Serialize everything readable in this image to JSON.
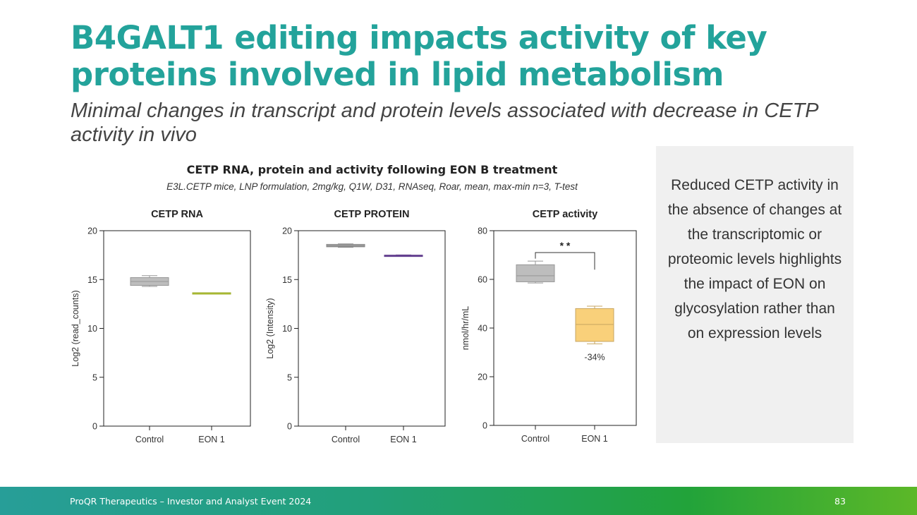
{
  "slide": {
    "title": "B4GALT1 editing impacts activity of key proteins involved in lipid metabolism",
    "subtitle": "Minimal changes in transcript and protein levels associated with decrease in CETP activity in vivo",
    "figure_title": "CETP RNA, protein and activity following EON B treatment",
    "figure_subtitle": "E3L.CETP mice, LNP formulation, 2mg/kg, Q1W, D31, RNAseq, Roar, mean, max-min n=3, T-test",
    "panel_text": "Reduced CETP activity in the absence of changes at the transcriptomic or proteomic levels highlights the impact of EON on glycosylation rather than on expression levels",
    "footer_text": "ProQR Therapeutics – Investor and Analyst Event 2024",
    "page_number": "83"
  },
  "colors": {
    "title": "#23a39b",
    "control": "#bdbdbd",
    "eon_rna": "#c8dc3c",
    "eon_protein": "#7b4fb0",
    "eon_activity": "#f9d07a"
  },
  "chart_data": [
    {
      "type": "box",
      "title": "CETP RNA",
      "ylabel": "Log2 (read_counts)",
      "ylim": [
        0,
        20
      ],
      "yticks": [
        "0",
        "5",
        "10",
        "15",
        "20"
      ],
      "categories": [
        "Control",
        "EON 1"
      ],
      "series": [
        {
          "name": "Control",
          "min": 14.3,
          "q1": 14.4,
          "median": 14.8,
          "q3": 15.2,
          "max": 15.4,
          "color": "#bdbdbd"
        },
        {
          "name": "EON 1",
          "min": 13.6,
          "q1": 13.6,
          "median": 13.6,
          "q3": 13.65,
          "max": 13.65,
          "color": "#c8dc3c"
        }
      ]
    },
    {
      "type": "box",
      "title": "CETP PROTEIN",
      "ylabel": "Log2 (Intensity)",
      "ylim": [
        0,
        20
      ],
      "yticks": [
        "0",
        "5",
        "10",
        "15",
        "20"
      ],
      "categories": [
        "Control",
        "EON 1"
      ],
      "series": [
        {
          "name": "Control",
          "min": 18.3,
          "q1": 18.35,
          "median": 18.45,
          "q3": 18.6,
          "max": 18.65,
          "color": "#a8a8a8"
        },
        {
          "name": "EON 1",
          "min": 17.4,
          "q1": 17.4,
          "median": 17.45,
          "q3": 17.5,
          "max": 17.52,
          "color": "#7b4fb0"
        }
      ]
    },
    {
      "type": "box",
      "title": "CETP activity",
      "ylabel": "nmol/hr/mL",
      "ylim": [
        0,
        80
      ],
      "yticks": [
        "0",
        "20",
        "40",
        "60",
        "80"
      ],
      "categories": [
        "Control",
        "EON 1"
      ],
      "series": [
        {
          "name": "Control",
          "min": 58.5,
          "q1": 59,
          "median": 61.5,
          "q3": 66,
          "max": 67.5,
          "color": "#bdbdbd"
        },
        {
          "name": "EON 1",
          "min": 33.5,
          "q1": 34.5,
          "median": 41.5,
          "q3": 48,
          "max": 49,
          "color": "#f9d07a"
        }
      ],
      "significance": "* *",
      "annotation": "-34%"
    }
  ]
}
